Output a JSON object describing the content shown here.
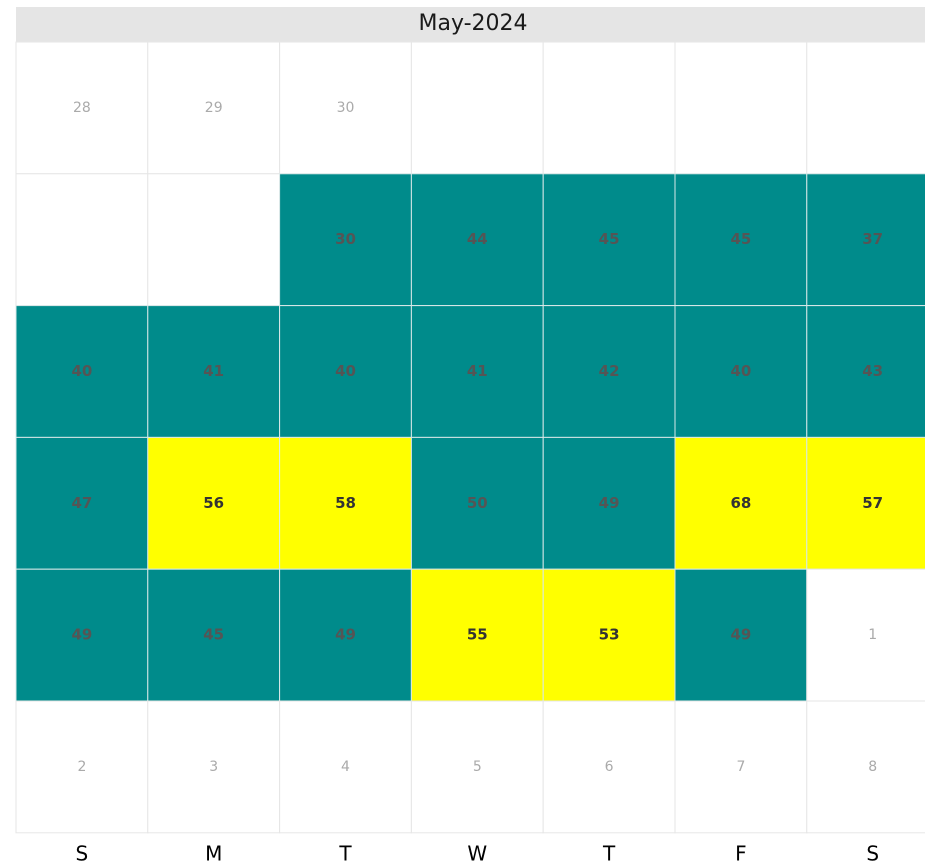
{
  "chart_data": {
    "type": "calendar",
    "title": "May-2024",
    "weekdays": [
      "S",
      "M",
      "T",
      "W",
      "T",
      "F",
      "S"
    ],
    "weeks": [
      [
        null,
        null,
        null,
        null,
        null,
        null,
        null
      ],
      [
        null,
        null,
        30,
        44,
        45,
        45,
        37
      ],
      [
        40,
        41,
        40,
        41,
        42,
        40,
        43
      ],
      [
        47,
        56,
        58,
        50,
        49,
        68,
        57
      ],
      [
        49,
        45,
        49,
        55,
        53,
        49,
        null
      ],
      [
        null,
        null,
        null,
        null,
        null,
        null,
        null
      ]
    ],
    "cell_colors": [
      [
        null,
        null,
        null,
        null,
        null,
        null,
        null
      ],
      [
        null,
        null,
        "#008b8b",
        "#008b8b",
        "#008b8b",
        "#008b8b",
        "#008b8b"
      ],
      [
        "#008b8b",
        "#008b8b",
        "#008b8b",
        "#008b8b",
        "#008b8b",
        "#008b8b",
        "#008b8b"
      ],
      [
        "#008b8b",
        "#ffff00",
        "#ffff00",
        "#008b8b",
        "#008b8b",
        "#ffff00",
        "#ffff00"
      ],
      [
        "#008b8b",
        "#008b8b",
        "#008b8b",
        "#ffff00",
        "#ffff00",
        "#008b8b",
        null
      ],
      [
        null,
        null,
        null,
        null,
        null,
        null,
        null
      ]
    ],
    "day_labels": [
      [
        "28",
        "29",
        "30",
        null,
        null,
        null,
        null
      ],
      [
        null,
        null,
        null,
        null,
        null,
        null,
        null
      ],
      [
        null,
        null,
        null,
        null,
        null,
        null,
        null
      ],
      [
        null,
        null,
        null,
        null,
        null,
        null,
        null
      ],
      [
        null,
        null,
        null,
        null,
        null,
        null,
        "1"
      ],
      [
        "2",
        "3",
        "4",
        "5",
        "6",
        "7",
        "8"
      ]
    ]
  }
}
